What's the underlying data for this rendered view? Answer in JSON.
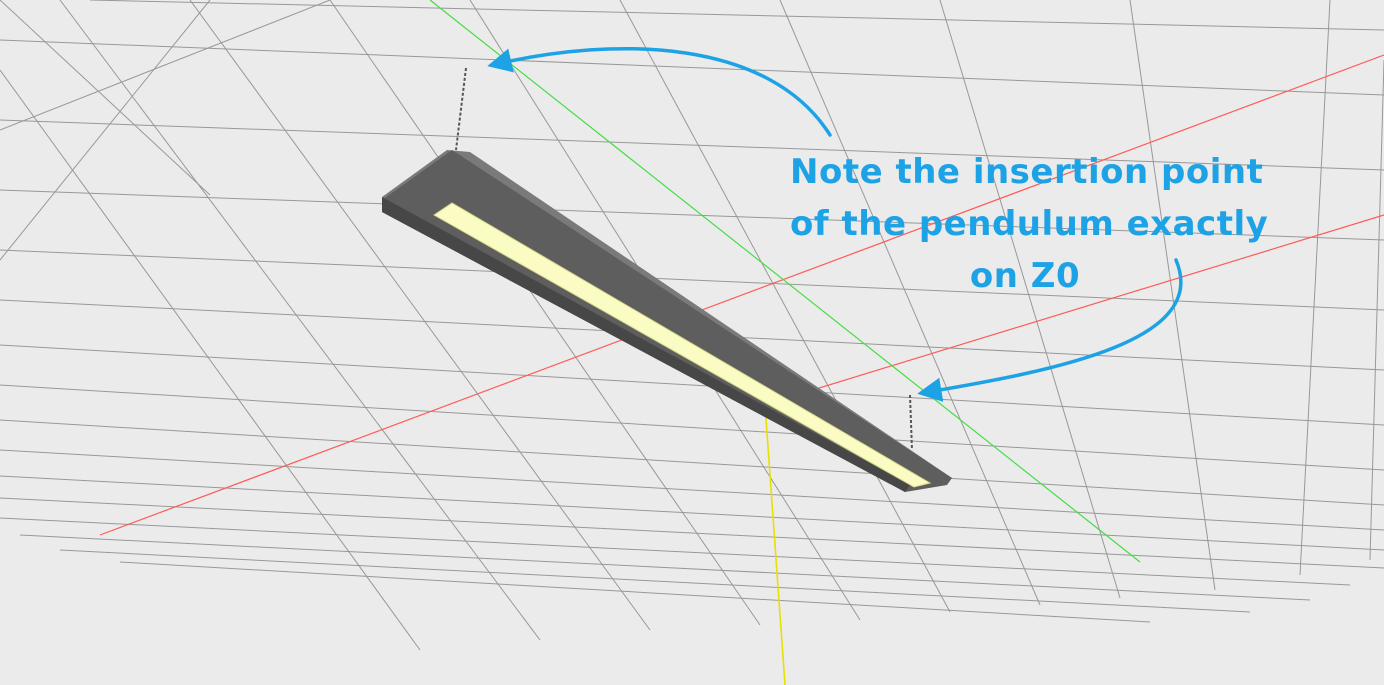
{
  "annotation": {
    "lines": [
      "Note the insertion point",
      "of the pendulum exactly",
      "on Z0"
    ],
    "color": "#1ea2e6"
  },
  "scene": {
    "background_color": "#ebebeb",
    "grid_color": "#8a8a8a",
    "axis_x_color": "#ff5a5a",
    "axis_y_color": "#44dd44",
    "axis_z_color": "#e8e000",
    "luminaire_body_color": "#5e5e5e",
    "luminaire_diffuser_color": "#fbfbc4"
  }
}
